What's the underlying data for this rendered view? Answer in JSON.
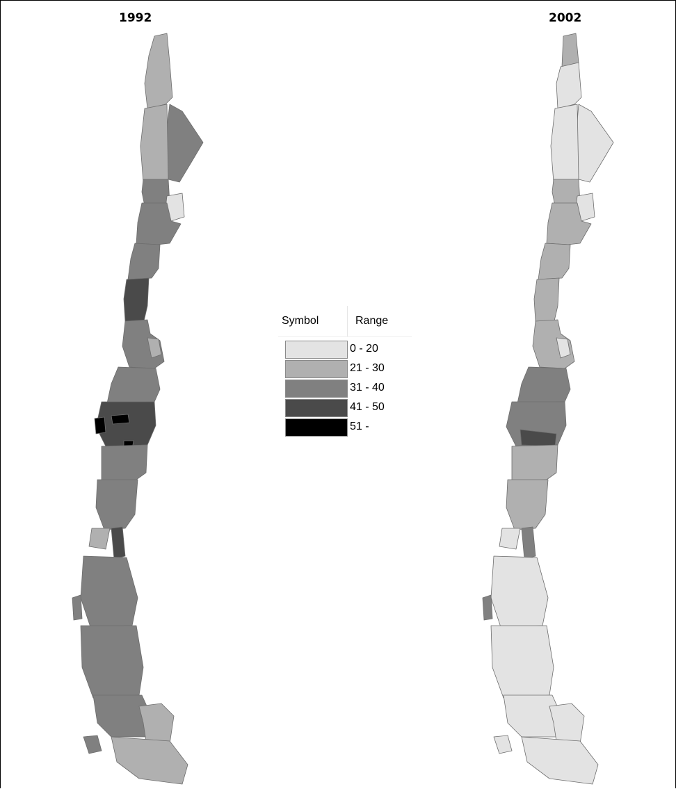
{
  "maps": [
    {
      "title": "1992"
    },
    {
      "title": "2002"
    }
  ],
  "legend": {
    "header_symbol": "Symbol",
    "header_range": "Range",
    "classes": [
      {
        "range": " 0 - 20",
        "color": "#e3e3e3"
      },
      {
        "range": "21 - 30",
        "color": "#b0b0b0"
      },
      {
        "range": "31 - 40",
        "color": "#808080"
      },
      {
        "range": "41 - 50",
        "color": "#4a4a4a"
      },
      {
        "range": "51 -",
        "color": "#000000"
      }
    ]
  }
}
